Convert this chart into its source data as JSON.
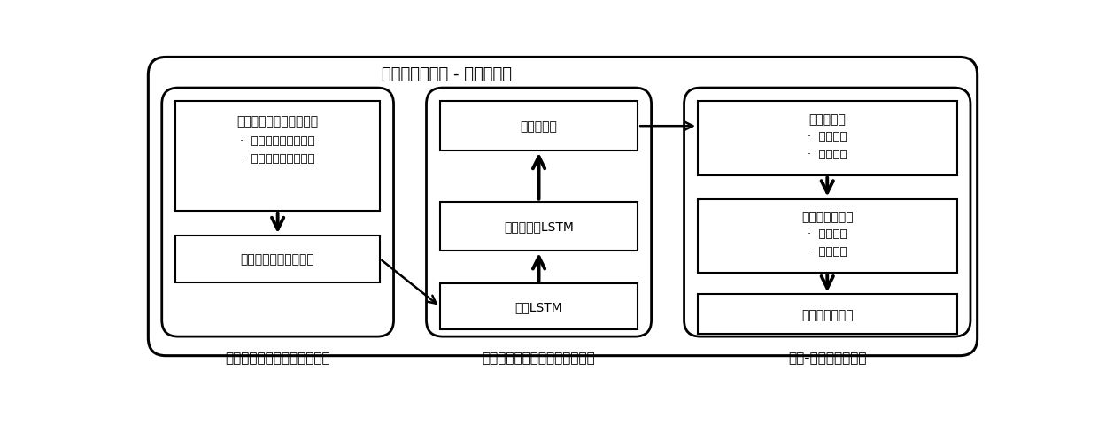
{
  "title": "家庭环境中的脑 - 机器人交互",
  "bg_color": "#ffffff",
  "fig_width": 12.4,
  "fig_height": 4.81,
  "module_labels": [
    "脑电图信号采集和预处理模块",
    "基于神经网络的脑电信号解释器",
    "用户-机器人交互模块"
  ],
  "eeg_device_title": "低成本的脑电图信号设备",
  "eeg_device_b1": "·  原始脑电图信号采集",
  "eeg_device_b2": "·  脑电图数据蓝牙传输",
  "eeg_preprocess": "脑电图信号数据预处理",
  "personalize": "个性化定制",
  "enhanced_lstm": "增强的堆栈LSTM",
  "stacked_lstm": "堆栈LSTM",
  "home_robot_title": "家庭机器人",
  "home_robot_b1": "·  命令映射",
  "home_robot_b2": "·  实时操作",
  "embedded_ai_title": "嵌入式人工智能",
  "embedded_ai_b1": "·  网络剪枝",
  "embedded_ai_b2": "·  模型量化",
  "robot_action": "机器人执行动作"
}
